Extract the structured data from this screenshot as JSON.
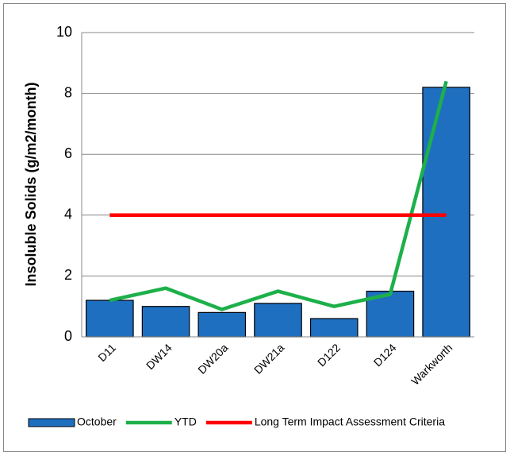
{
  "chart_data": {
    "type": "bar",
    "y_label": "Insoluble Solids (g/m2/month)",
    "categories": [
      "D11",
      "DW14",
      "DW20a",
      "DW21a",
      "D122",
      "D124",
      "Warkworth"
    ],
    "series": [
      {
        "name": "October",
        "type": "bar",
        "color": "#1f6fc0",
        "values": [
          1.2,
          1.0,
          0.8,
          1.1,
          0.6,
          1.5,
          8.2
        ]
      },
      {
        "name": "YTD",
        "type": "line",
        "color": "#1db04a",
        "values": [
          1.2,
          1.6,
          0.9,
          1.5,
          1.0,
          1.4,
          8.4
        ]
      },
      {
        "name": "Long Term Impact Assessment Criteria",
        "type": "line",
        "color": "#ff0000",
        "values": [
          4,
          4,
          4,
          4,
          4,
          4,
          4
        ]
      }
    ],
    "ylim": [
      0,
      10
    ],
    "yticks": [
      0,
      2,
      4,
      6,
      8,
      10
    ],
    "grid": true,
    "legend": "bottom"
  }
}
